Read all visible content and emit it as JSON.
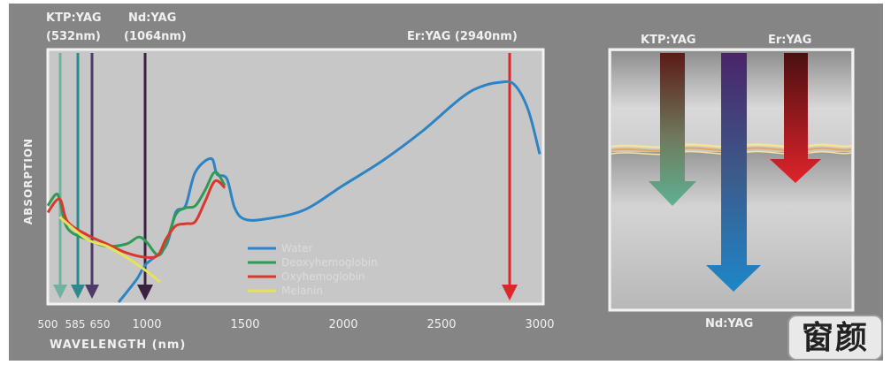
{
  "left_chart": {
    "y_axis_label": "ABSORPTION",
    "x_axis_label": "WAVELENGTH (nm)",
    "x_ticks": [
      "500",
      "585",
      "650",
      "1000",
      "1500",
      "2000",
      "2500",
      "3000"
    ],
    "laser_labels": {
      "ktp_line1": "KTP:YAG",
      "ktp_line2": "(532nm)",
      "nd_line1": "Nd:YAG",
      "nd_line2": "(1064nm)",
      "er": "Er:YAG (2940nm)"
    },
    "legend": [
      "Water",
      "Deoxyhemoglobin",
      "Oxyhemoglobin",
      "Melanin"
    ],
    "colors": {
      "water": "#2c84c4",
      "deoxyhemoglobin": "#2f9a55",
      "oxyhemoglobin": "#d73a2c",
      "melanin": "#e6e35a",
      "ktp_arrow": "#5f9e8c",
      "nd_arrow": "#3b2140",
      "er_arrow": "#e0262a"
    }
  },
  "right_panel": {
    "labels": {
      "ktp": "KTP:YAG",
      "er": "Er:YAG",
      "nd": "Nd:YAG"
    }
  },
  "watermark": "窗颜",
  "chart_data": {
    "type": "line",
    "title": "",
    "xlabel": "WAVELENGTH (nm)",
    "ylabel": "ABSORPTION",
    "xlim": [
      500,
      3000
    ],
    "x_ticks_shown": [
      500,
      585,
      650,
      1000,
      1500,
      2000,
      2500,
      3000
    ],
    "y_scale": "relative (unlabeled)",
    "ylim": [
      0,
      1
    ],
    "grid": false,
    "legend_position": "bottom-center",
    "series": [
      {
        "name": "Water",
        "color": "#2c84c4",
        "x": [
          860,
          950,
          1000,
          1100,
          1150,
          1200,
          1250,
          1330,
          1360,
          1410,
          1450,
          1500,
          1600,
          1800,
          2000,
          2200,
          2400,
          2600,
          2700,
          2800,
          2870,
          2940,
          3000
        ],
        "y": [
          0.0,
          0.1,
          0.17,
          0.25,
          0.4,
          0.43,
          0.58,
          0.64,
          0.57,
          0.55,
          0.42,
          0.37,
          0.37,
          0.41,
          0.52,
          0.63,
          0.76,
          0.91,
          0.96,
          0.98,
          0.97,
          0.86,
          0.66
        ]
      },
      {
        "name": "Deoxyhemoglobin",
        "color": "#2f9a55",
        "x": [
          500,
          540,
          560,
          600,
          700,
          800,
          900,
          960,
          1000,
          1060,
          1100,
          1150,
          1200,
          1250,
          1300,
          1350,
          1400
        ],
        "y": [
          0.43,
          0.48,
          0.46,
          0.33,
          0.28,
          0.25,
          0.26,
          0.29,
          0.27,
          0.21,
          0.26,
          0.39,
          0.42,
          0.43,
          0.5,
          0.58,
          0.52
        ]
      },
      {
        "name": "Oxyhemoglobin",
        "color": "#d73a2c",
        "x": [
          500,
          560,
          600,
          700,
          800,
          900,
          1000,
          1060,
          1100,
          1150,
          1200,
          1250,
          1300,
          1350,
          1400
        ],
        "y": [
          0.4,
          0.46,
          0.36,
          0.3,
          0.26,
          0.22,
          0.2,
          0.21,
          0.28,
          0.34,
          0.35,
          0.36,
          0.45,
          0.54,
          0.51
        ]
      },
      {
        "name": "Melanin",
        "color": "#e6e35a",
        "x": [
          560,
          700,
          800,
          900,
          1000,
          1070
        ],
        "y": [
          0.38,
          0.28,
          0.25,
          0.2,
          0.14,
          0.09
        ]
      }
    ],
    "laser_lines_nm": {
      "KTP:YAG": 532,
      "Nd:YAG": 1064,
      "Er:YAG": 2940
    }
  }
}
